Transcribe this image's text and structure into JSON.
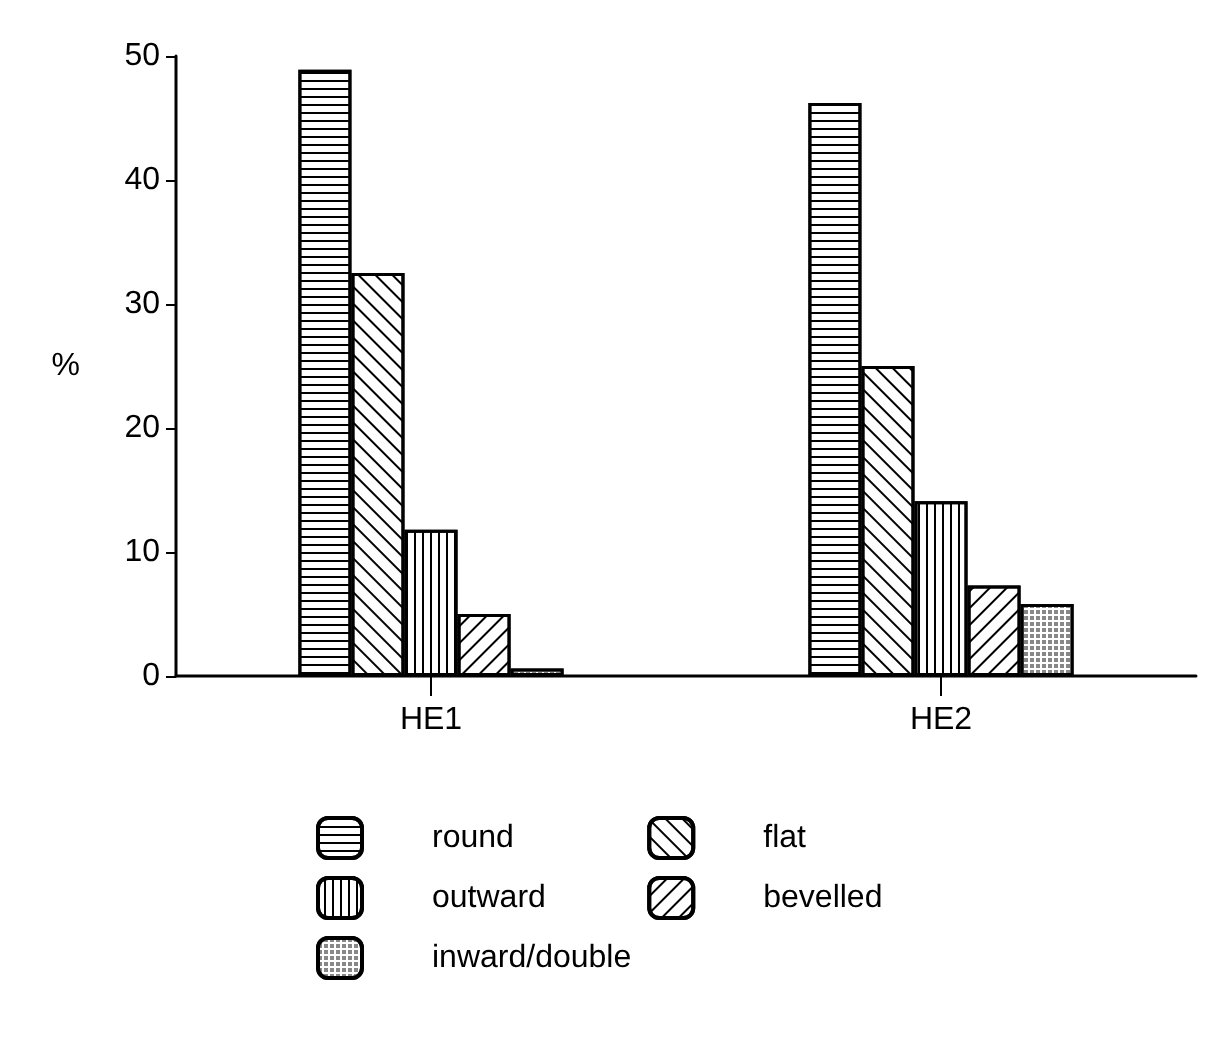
{
  "chart_data": {
    "type": "bar",
    "ylabel": "%",
    "categories": [
      "HE1",
      "HE2"
    ],
    "series": [
      {
        "name": "round",
        "color": "#ffffff",
        "values": [
          48.9,
          46.2
        ]
      },
      {
        "name": "flat",
        "color": "#ffffff",
        "values": [
          32.5,
          25.0
        ]
      },
      {
        "name": "outward",
        "color": "#ffffff",
        "values": [
          11.8,
          14.1
        ]
      },
      {
        "name": "bevelled",
        "color": "#ffffff",
        "values": [
          5.0,
          7.3
        ]
      },
      {
        "name": "inward/double",
        "color": "#ffffff",
        "values": [
          0.6,
          5.8
        ]
      }
    ],
    "ylim": [
      0,
      50
    ],
    "yticks": [
      0,
      10,
      20,
      30,
      40,
      50
    ],
    "grid": false,
    "legend": "bottom"
  }
}
